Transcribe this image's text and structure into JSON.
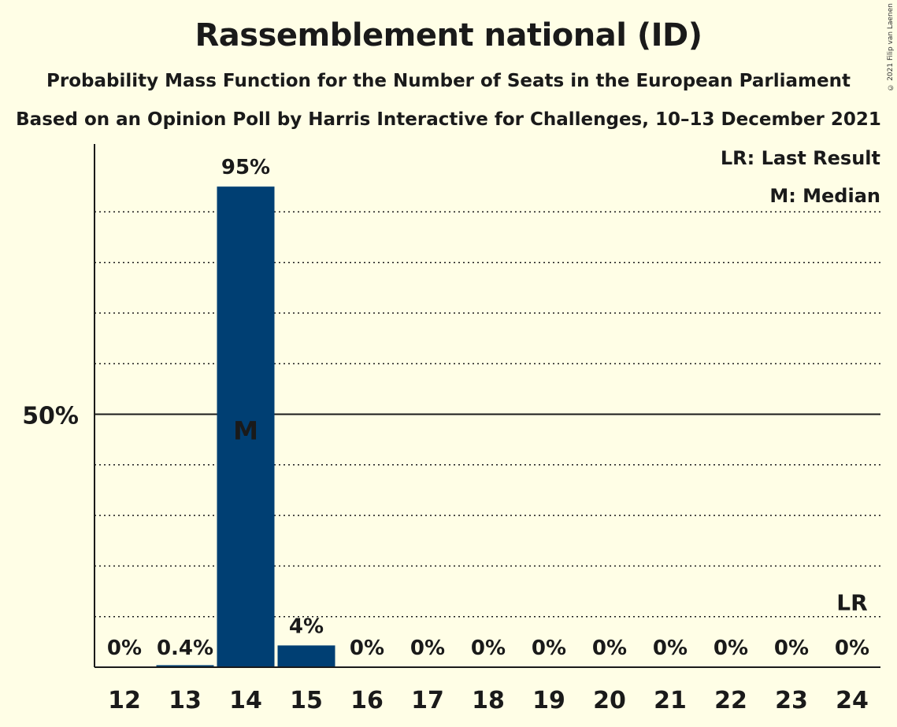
{
  "header": {
    "title": "Rassemblement national (ID)",
    "subtitle_1": "Probability Mass Function for the Number of Seats in the European Parliament",
    "subtitle_2": "Based on an Opinion Poll by Harris Interactive for Challenges, 10–13 December 2021",
    "copyright": "© 2021 Filip van Laenen"
  },
  "legend": {
    "last_result": "LR: Last Result",
    "median": "M: Median"
  },
  "chart_data": {
    "type": "bar",
    "categories": [
      "12",
      "13",
      "14",
      "15",
      "16",
      "17",
      "18",
      "19",
      "20",
      "21",
      "22",
      "23",
      "24"
    ],
    "values": [
      0,
      0.4,
      95,
      4.3,
      0,
      0,
      0,
      0,
      0,
      0,
      0,
      0,
      0
    ],
    "data_labels": [
      "0%",
      "0.4%",
      "95%",
      "4%",
      "0%",
      "0%",
      "0%",
      "0%",
      "0%",
      "0%",
      "0%",
      "0%",
      "0%"
    ],
    "ylim": [
      0,
      105
    ],
    "ytick_label": "50%",
    "ytick_value": 50,
    "gridlines": [
      10,
      20,
      30,
      40,
      60,
      70,
      80,
      90
    ],
    "median_category": "14",
    "median_marker": "M",
    "last_result_category": "24",
    "last_result_marker": "LR",
    "last_result_level": 10,
    "bar_color": "#003F73",
    "legend_position": "top-right"
  }
}
